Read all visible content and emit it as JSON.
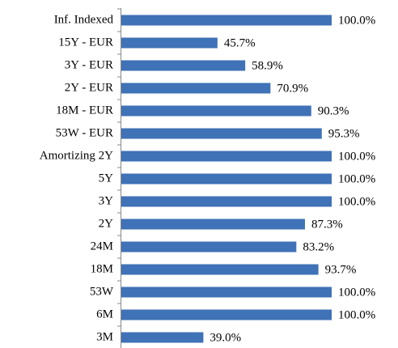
{
  "chart_data": {
    "type": "bar",
    "orientation": "horizontal",
    "categories": [
      "Inf. Indexed",
      "15Y - EUR",
      "3Y - EUR",
      "2Y - EUR",
      "18M - EUR",
      "53W - EUR",
      "Amortizing 2Y",
      "5Y",
      "3Y",
      "2Y",
      "24M",
      "18M",
      "53W",
      "6M",
      "3M"
    ],
    "values": [
      100,
      45.7,
      58.9,
      70.9,
      90.3,
      95.3,
      100,
      100,
      100,
      87.3,
      83.2,
      93.7,
      100,
      100,
      39
    ],
    "value_labels": [
      "100.0%",
      "45.7%",
      "58.9%",
      "70.9%",
      "90.3%",
      "95.3%",
      "100.0%",
      "100.0%",
      "100.0%",
      "87.3%",
      "83.2%",
      "93.7%",
      "100.0%",
      "100.0%",
      "39.0%"
    ],
    "color": "#3f72b6"
  }
}
